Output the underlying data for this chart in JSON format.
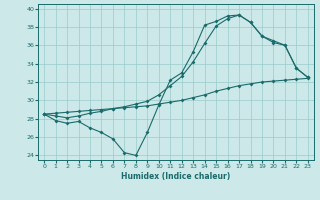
{
  "xlabel": "Humidex (Indice chaleur)",
  "bg_color": "#cce8e8",
  "grid_color": "#99cccc",
  "line_color": "#1a6b6b",
  "xlim": [
    -0.5,
    23.5
  ],
  "ylim": [
    23.5,
    40.5
  ],
  "yticks": [
    24,
    26,
    28,
    30,
    32,
    34,
    36,
    38,
    40
  ],
  "xticks": [
    0,
    1,
    2,
    3,
    4,
    5,
    6,
    7,
    8,
    9,
    10,
    11,
    12,
    13,
    14,
    15,
    16,
    17,
    18,
    19,
    20,
    21,
    22,
    23
  ],
  "curveA_x": [
    0,
    1,
    2,
    3,
    4,
    5,
    6,
    7,
    8,
    9,
    10,
    11,
    12,
    13,
    14,
    15,
    16,
    17,
    18,
    19,
    20,
    21,
    22,
    23
  ],
  "curveA_y": [
    28.5,
    27.8,
    27.5,
    27.7,
    27.0,
    26.5,
    25.8,
    24.3,
    24.0,
    26.5,
    29.5,
    32.2,
    33.0,
    35.3,
    38.2,
    38.6,
    39.2,
    39.3,
    38.5,
    37.0,
    36.5,
    36.0,
    33.5,
    32.5
  ],
  "curveB_x": [
    0,
    1,
    2,
    3,
    4,
    5,
    6,
    7,
    8,
    9,
    10,
    11,
    12,
    13,
    14,
    15,
    16,
    17,
    18,
    19,
    20,
    21,
    22,
    23
  ],
  "curveB_y": [
    28.5,
    28.6,
    28.7,
    28.8,
    28.9,
    29.0,
    29.1,
    29.2,
    29.3,
    29.4,
    29.6,
    29.8,
    30.0,
    30.3,
    30.6,
    31.0,
    31.3,
    31.6,
    31.8,
    32.0,
    32.1,
    32.2,
    32.3,
    32.4
  ],
  "curveC_x": [
    0,
    1,
    2,
    3,
    4,
    5,
    6,
    7,
    8,
    9,
    10,
    11,
    12,
    13,
    14,
    15,
    16,
    17,
    18,
    19,
    20,
    21,
    22,
    23
  ],
  "curveC_y": [
    28.5,
    28.3,
    28.1,
    28.3,
    28.6,
    28.8,
    29.1,
    29.3,
    29.6,
    29.9,
    30.6,
    31.6,
    32.6,
    34.2,
    36.2,
    38.1,
    38.9,
    39.3,
    38.5,
    37.0,
    36.3,
    36.0,
    33.5,
    32.5
  ]
}
